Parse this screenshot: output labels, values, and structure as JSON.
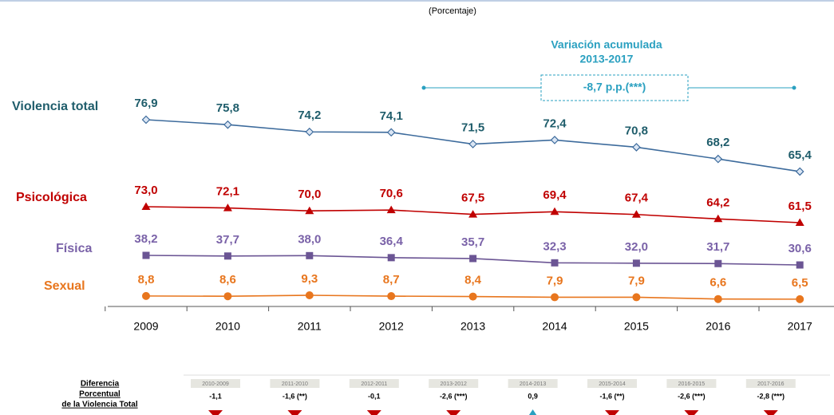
{
  "chart_data": {
    "type": "line",
    "subtitle": "(Porcentaje)",
    "categories": [
      "2009",
      "2010",
      "2011",
      "2012",
      "2013",
      "2014",
      "2015",
      "2016",
      "2017"
    ],
    "series": [
      {
        "name": "Violencia total",
        "color": "#3d6b9c",
        "label_color": "#1f5d6b",
        "marker": "diamond",
        "values": [
          76.9,
          75.8,
          74.2,
          74.1,
          71.5,
          72.4,
          70.8,
          68.2,
          65.4
        ],
        "value_labels": [
          "76,9",
          "75,8",
          "74,2",
          "74,1",
          "71,5",
          "72,4",
          "70,8",
          "68,2",
          "65,4"
        ]
      },
      {
        "name": "Psicológica",
        "color": "#c00000",
        "label_color": "#c00000",
        "marker": "triangle",
        "values": [
          73.0,
          72.1,
          70.0,
          70.6,
          67.5,
          69.4,
          67.4,
          64.2,
          61.5
        ],
        "value_labels": [
          "73,0",
          "72,1",
          "70,0",
          "70,6",
          "67,5",
          "69,4",
          "67,4",
          "64,2",
          "61,5"
        ]
      },
      {
        "name": "Física",
        "color": "#6b5594",
        "label_color": "#7a62a8",
        "marker": "square",
        "values": [
          38.2,
          37.7,
          38.0,
          36.4,
          35.7,
          32.3,
          32.0,
          31.7,
          30.6
        ],
        "value_labels": [
          "38,2",
          "37,7",
          "38,0",
          "36,4",
          "35,7",
          "32,3",
          "32,0",
          "31,7",
          "30,6"
        ]
      },
      {
        "name": "Sexual",
        "color": "#e8761e",
        "label_color": "#e8761e",
        "marker": "circle",
        "values": [
          8.8,
          8.6,
          9.3,
          8.7,
          8.4,
          7.9,
          7.9,
          6.6,
          6.5
        ],
        "value_labels": [
          "8,8",
          "8,6",
          "9,3",
          "8,7",
          "8,4",
          "7,9",
          "7,9",
          "6,6",
          "6,5"
        ]
      }
    ],
    "annotation": {
      "title": "Variación acumulada",
      "period": "2013-2017",
      "text": "-8,7 p.p.(***)"
    },
    "differences": {
      "label": [
        "Diferencia",
        "Porcentual",
        "de la Violencia Total"
      ],
      "periods": [
        "2010-2009",
        "2011-2010",
        "2012-2011",
        "2013-2012",
        "2014-2013",
        "2015-2014",
        "2016-2015",
        "2017-2016"
      ],
      "values": [
        -1.1,
        -1.6,
        -0.1,
        -2.6,
        0.9,
        -1.6,
        -2.6,
        -2.8
      ],
      "value_labels": [
        "-1,1",
        "-1,6 (**)",
        "-0,1",
        "-2,6 (***)",
        "0,9",
        "-1,6 (**)",
        "-2,6  (***)",
        "-2,8 (***)"
      ]
    }
  }
}
